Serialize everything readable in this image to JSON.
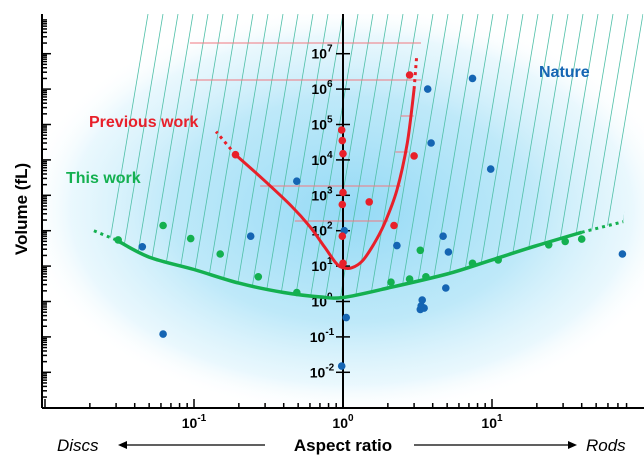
{
  "chart_data": {
    "type": "scatter",
    "title": "",
    "xlabel": "Aspect ratio",
    "ylabel": "Volume (fL)",
    "x_scale": "log",
    "y_scale": "log",
    "xlim": [
      0.01,
      80
    ],
    "ylim": [
      0.001,
      100000000
    ],
    "x_tick_labels": [
      {
        "value": 0.1,
        "base": "10",
        "exp": "-1"
      },
      {
        "value": 1,
        "base": "10",
        "exp": "0"
      },
      {
        "value": 10,
        "base": "10",
        "exp": "1"
      }
    ],
    "y_tick_labels": [
      {
        "value": 0.01,
        "base": "10",
        "exp": "-2"
      },
      {
        "value": 0.1,
        "base": "10",
        "exp": "-1"
      },
      {
        "value": 1,
        "base": "10",
        "exp": "0"
      },
      {
        "value": 10,
        "base": "10",
        "exp": "1"
      },
      {
        "value": 100,
        "base": "10",
        "exp": "2"
      },
      {
        "value": 1000,
        "base": "10",
        "exp": "3"
      },
      {
        "value": 10000,
        "base": "10",
        "exp": "4"
      },
      {
        "value": 100000,
        "base": "10",
        "exp": "5"
      },
      {
        "value": 1000000,
        "base": "10",
        "exp": "6"
      },
      {
        "value": 10000000,
        "base": "10",
        "exp": "7"
      }
    ],
    "left_end_label": "Discs",
    "right_end_label": "Rods",
    "colors": {
      "nature": "#1565b3",
      "previous": "#e8202a",
      "this": "#14b050",
      "hatch": "#4fc0a8",
      "cloud": "#8fd8f5"
    },
    "series": [
      {
        "name": "Nature",
        "color": "#1565b3",
        "points": [
          {
            "x": 0.045,
            "y": 35
          },
          {
            "x": 0.062,
            "y": 0.12
          },
          {
            "x": 0.24,
            "y": 70
          },
          {
            "x": 0.49,
            "y": 2500
          },
          {
            "x": 0.98,
            "y": 0.015
          },
          {
            "x": 1.02,
            "y": 100
          },
          {
            "x": 1.05,
            "y": 0.35
          },
          {
            "x": 2.3,
            "y": 38
          },
          {
            "x": 3.3,
            "y": 0.6
          },
          {
            "x": 3.35,
            "y": 0.75
          },
          {
            "x": 3.4,
            "y": 1.1
          },
          {
            "x": 3.5,
            "y": 0.65
          },
          {
            "x": 3.7,
            "y": 1000000
          },
          {
            "x": 3.9,
            "y": 30000
          },
          {
            "x": 4.7,
            "y": 70
          },
          {
            "x": 4.9,
            "y": 2.4
          },
          {
            "x": 5.1,
            "y": 25
          },
          {
            "x": 7.4,
            "y": 2000000
          },
          {
            "x": 9.8,
            "y": 5500
          },
          {
            "x": 75,
            "y": 22
          }
        ]
      },
      {
        "name": "Previous work",
        "color": "#e8202a",
        "curve": [
          {
            "x": 0.19,
            "y": 14000
          },
          {
            "x": 0.3,
            "y": 2500
          },
          {
            "x": 0.45,
            "y": 500
          },
          {
            "x": 0.6,
            "y": 130
          },
          {
            "x": 0.75,
            "y": 35
          },
          {
            "x": 0.9,
            "y": 12
          },
          {
            "x": 1.0,
            "y": 9
          },
          {
            "x": 1.15,
            "y": 9
          },
          {
            "x": 1.35,
            "y": 14
          },
          {
            "x": 1.6,
            "y": 40
          },
          {
            "x": 1.9,
            "y": 160
          },
          {
            "x": 2.3,
            "y": 1400
          },
          {
            "x": 2.7,
            "y": 30000
          },
          {
            "x": 3.0,
            "y": 1000000
          }
        ],
        "points": [
          {
            "x": 0.19,
            "y": 14000
          },
          {
            "x": 0.98,
            "y": 70000
          },
          {
            "x": 0.99,
            "y": 35000
          },
          {
            "x": 1.0,
            "y": 15000
          },
          {
            "x": 1.0,
            "y": 1200
          },
          {
            "x": 0.99,
            "y": 550
          },
          {
            "x": 0.99,
            "y": 70
          },
          {
            "x": 1.0,
            "y": 12
          },
          {
            "x": 1.5,
            "y": 650
          },
          {
            "x": 2.2,
            "y": 140
          },
          {
            "x": 2.8,
            "y": 2500000
          },
          {
            "x": 3.0,
            "y": 13000
          }
        ]
      },
      {
        "name": "This work",
        "color": "#14b050",
        "curve": [
          {
            "x": 0.03,
            "y": 55
          },
          {
            "x": 0.05,
            "y": 18
          },
          {
            "x": 0.1,
            "y": 8
          },
          {
            "x": 0.2,
            "y": 3.3
          },
          {
            "x": 0.4,
            "y": 1.8
          },
          {
            "x": 0.7,
            "y": 1.35
          },
          {
            "x": 1.0,
            "y": 1.3
          },
          {
            "x": 2.0,
            "y": 2.4
          },
          {
            "x": 5.0,
            "y": 6
          },
          {
            "x": 10,
            "y": 15
          },
          {
            "x": 20,
            "y": 38
          },
          {
            "x": 40,
            "y": 90
          }
        ],
        "points": [
          {
            "x": 0.031,
            "y": 55
          },
          {
            "x": 0.062,
            "y": 140
          },
          {
            "x": 0.095,
            "y": 60
          },
          {
            "x": 0.15,
            "y": 22
          },
          {
            "x": 0.27,
            "y": 5
          },
          {
            "x": 0.49,
            "y": 1.8
          },
          {
            "x": 2.1,
            "y": 3.5
          },
          {
            "x": 2.8,
            "y": 4.3
          },
          {
            "x": 3.3,
            "y": 28
          },
          {
            "x": 3.6,
            "y": 5
          },
          {
            "x": 7.4,
            "y": 12
          },
          {
            "x": 11,
            "y": 15
          },
          {
            "x": 24,
            "y": 40
          },
          {
            "x": 31,
            "y": 50
          },
          {
            "x": 40,
            "y": 58
          }
        ]
      }
    ],
    "legend": "none (inline labels)",
    "grid": false
  }
}
